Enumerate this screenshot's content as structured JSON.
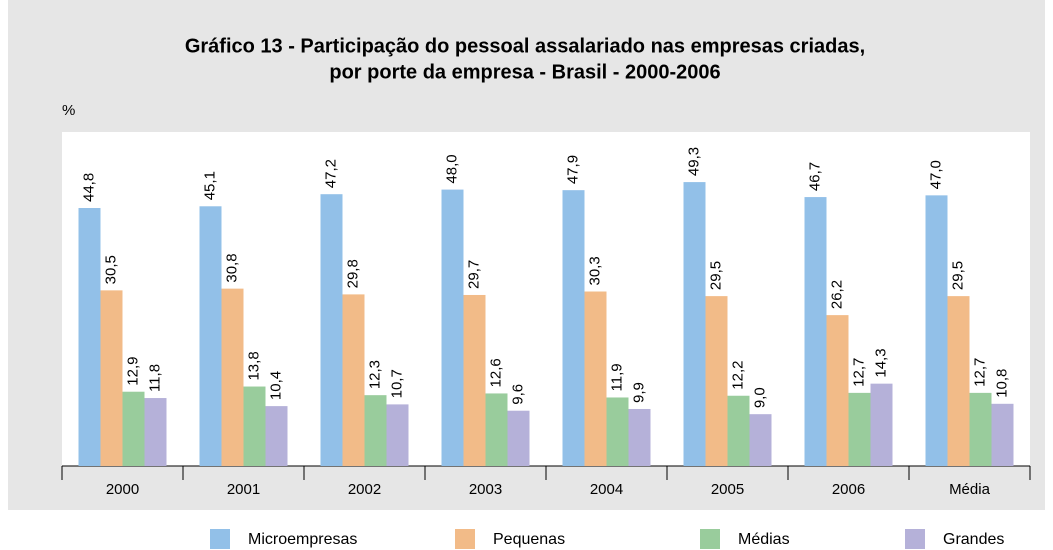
{
  "chart_data": {
    "type": "bar",
    "title": "Gráfico 13 - Participação do pessoal assalariado nas empresas criadas,",
    "subtitle": "por porte da empresa - Brasil - 2000-2006",
    "y_label": "%",
    "categories": [
      "2000",
      "2001",
      "2002",
      "2003",
      "2004",
      "2005",
      "2006",
      "Média"
    ],
    "ylim": [
      0,
      58
    ],
    "series": [
      {
        "name": "Microempresas",
        "color": "#92c0e8",
        "values": [
          44.8,
          45.1,
          47.2,
          48.0,
          47.9,
          49.3,
          46.7,
          47.0
        ],
        "value_labels": [
          "44,8",
          "45,1",
          "47,2",
          "48,0",
          "47,9",
          "49,3",
          "46,7",
          "47,0"
        ]
      },
      {
        "name": "Pequenas",
        "color": "#f2bb88",
        "values": [
          30.5,
          30.8,
          29.8,
          29.7,
          30.3,
          29.5,
          26.2,
          29.5
        ],
        "value_labels": [
          "30,5",
          "30,8",
          "29,8",
          "29,7",
          "30,3",
          "29,5",
          "26,2",
          "29,5"
        ]
      },
      {
        "name": "Médias",
        "color": "#99cc9c",
        "values": [
          12.9,
          13.8,
          12.3,
          12.6,
          11.9,
          12.2,
          12.7,
          12.7
        ],
        "value_labels": [
          "12,9",
          "13,8",
          "12,3",
          "12,6",
          "11,9",
          "12,2",
          "12,7",
          "12,7"
        ]
      },
      {
        "name": "Grandes",
        "color": "#b5b1d9",
        "values": [
          11.8,
          10.4,
          10.7,
          9.6,
          9.9,
          9.0,
          14.3,
          10.8
        ],
        "value_labels": [
          "11,8",
          "10,4",
          "10,7",
          "9,6",
          "9,9",
          "9,0",
          "14,3",
          "10,8"
        ]
      }
    ]
  }
}
